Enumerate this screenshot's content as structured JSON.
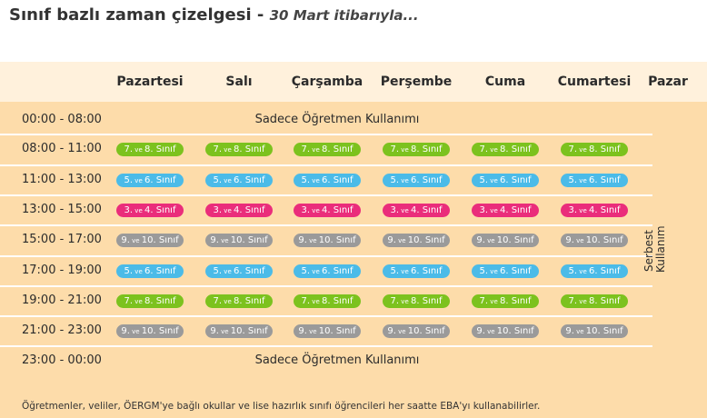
{
  "title": "Sınıf bazlı zaman çizelgesi - ",
  "subtitle": "30 Mart itibarıyla...",
  "days": [
    "Pazartesi",
    "Salı",
    "Çarşamba",
    "Perşembe",
    "Cuma",
    "Cumartesi",
    "Pazar"
  ],
  "rows": [
    {
      "time": "00:00 - 08:00",
      "teacher_only": "Sadece Öğretmen Kullanımı"
    },
    {
      "time": "08:00 - 11:00",
      "group": "g78"
    },
    {
      "time": "11:00 -  13:00",
      "group": "g56"
    },
    {
      "time": "13:00 -  15:00",
      "group": "g34"
    },
    {
      "time": "15:00 -  17:00",
      "group": "g910"
    },
    {
      "time": "17:00 -  19:00",
      "group": "g56"
    },
    {
      "time": "19:00 -  21:00",
      "group": "g78"
    },
    {
      "time": "21:00 -  23:00",
      "group": "g910"
    },
    {
      "time": "23:00 - 00:00",
      "teacher_only": "Sadece Öğretmen Kullanımı"
    }
  ],
  "groups": {
    "g78": {
      "a": "7.",
      "ve": " ve ",
      "b": "8. Sınıf",
      "color": "#7cc21e"
    },
    "g56": {
      "a": "5.",
      "ve": " ve ",
      "b": "6. Sınıf",
      "color": "#4bbbe8"
    },
    "g34": {
      "a": "3.",
      "ve": " ve ",
      "b": "4. Sınıf",
      "color": "#ea2d7b"
    },
    "g910": {
      "a": "9.",
      "ve": " ve ",
      "b": "10. Sınıf",
      "color": "#9a9a9a"
    }
  },
  "sunday_line1": "Serbest",
  "sunday_line2": "Kullanım",
  "note": "Öğretmenler, veliler, ÖERGM'ye bağlı okullar ve lise hazırlık sınıfı öğrencileri her saatte EBA'yı kullanabilirler."
}
